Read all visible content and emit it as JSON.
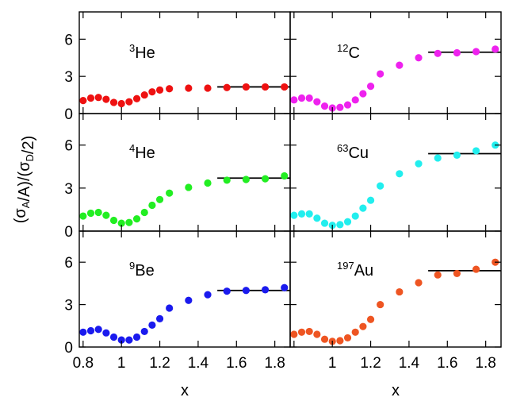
{
  "chart_data": {
    "type": "scatter",
    "layout": "3 rows x 2 columns, shared axes",
    "ylabel": "(σ_A/A)/(σ_D/2)",
    "xlabel": "x",
    "xlim": [
      0.78,
      1.88
    ],
    "ylim": [
      0,
      8.2
    ],
    "x_ticks": [
      0.8,
      1,
      1.2,
      1.4,
      1.6,
      1.8
    ],
    "x_tick_labels_left": [
      "0.8",
      "1",
      "1.2",
      "1.4",
      "1.6",
      "1.8"
    ],
    "x_tick_labels_right": [
      "1",
      "1.2",
      "1.4",
      "1.6",
      "1.8"
    ],
    "y_ticks": [
      0,
      3,
      6
    ],
    "y_tick_labels": [
      "0",
      "3",
      "6"
    ],
    "grid": false,
    "legend": "none",
    "panels": [
      {
        "label_sup": "3",
        "label_main": "He",
        "color": "#ee1111",
        "x": [
          0.8,
          0.84,
          0.88,
          0.92,
          0.96,
          1.0,
          1.04,
          1.08,
          1.12,
          1.16,
          1.2,
          1.25,
          1.35,
          1.45,
          1.55,
          1.65,
          1.75,
          1.85
        ],
        "y": [
          1.05,
          1.25,
          1.3,
          1.15,
          0.9,
          0.8,
          0.95,
          1.2,
          1.5,
          1.75,
          1.9,
          2.0,
          2.05,
          2.05,
          2.1,
          2.15,
          2.15,
          2.15
        ],
        "plateau": {
          "x": [
            1.5,
            1.88
          ],
          "y": 2.15
        }
      },
      {
        "label_sup": "12",
        "label_main": "C",
        "color": "#ee22ee",
        "x": [
          0.8,
          0.84,
          0.88,
          0.92,
          0.96,
          1.0,
          1.04,
          1.08,
          1.12,
          1.16,
          1.2,
          1.25,
          1.35,
          1.45,
          1.55,
          1.65,
          1.75,
          1.85
        ],
        "y": [
          1.1,
          1.25,
          1.25,
          0.95,
          0.6,
          0.45,
          0.5,
          0.7,
          1.1,
          1.6,
          2.2,
          3.2,
          3.9,
          4.5,
          4.85,
          4.9,
          5.0,
          5.2
        ],
        "plateau": {
          "x": [
            1.5,
            1.88
          ],
          "y": 4.95
        }
      },
      {
        "label_sup": "4",
        "label_main": "He",
        "color": "#22ee22",
        "x": [
          0.8,
          0.84,
          0.88,
          0.92,
          0.96,
          1.0,
          1.04,
          1.08,
          1.12,
          1.16,
          1.2,
          1.25,
          1.35,
          1.45,
          1.55,
          1.65,
          1.75,
          1.85
        ],
        "y": [
          1.05,
          1.25,
          1.3,
          1.1,
          0.75,
          0.55,
          0.6,
          0.85,
          1.3,
          1.8,
          2.2,
          2.65,
          3.05,
          3.35,
          3.55,
          3.6,
          3.65,
          3.85
        ],
        "plateau": {
          "x": [
            1.5,
            1.88
          ],
          "y": 3.7
        }
      },
      {
        "label_sup": "63",
        "label_main": "Cu",
        "color": "#22eeee",
        "x": [
          0.8,
          0.84,
          0.88,
          0.92,
          0.96,
          1.0,
          1.04,
          1.08,
          1.12,
          1.16,
          1.2,
          1.25,
          1.35,
          1.45,
          1.55,
          1.65,
          1.75,
          1.85
        ],
        "y": [
          1.1,
          1.2,
          1.2,
          0.9,
          0.55,
          0.4,
          0.45,
          0.65,
          1.05,
          1.6,
          2.15,
          3.15,
          4.0,
          4.7,
          5.1,
          5.3,
          5.6,
          6.0
        ],
        "plateau": {
          "x": [
            1.5,
            1.88
          ],
          "y": 5.4
        }
      },
      {
        "label_sup": "9",
        "label_main": "Be",
        "color": "#1a1aee",
        "x": [
          0.8,
          0.84,
          0.88,
          0.92,
          0.96,
          1.0,
          1.04,
          1.08,
          1.12,
          1.16,
          1.2,
          1.25,
          1.35,
          1.45,
          1.55,
          1.65,
          1.75,
          1.85
        ],
        "y": [
          1.05,
          1.15,
          1.25,
          1.0,
          0.7,
          0.5,
          0.5,
          0.7,
          1.1,
          1.55,
          2.0,
          2.75,
          3.3,
          3.7,
          3.95,
          4.0,
          4.05,
          4.2
        ],
        "plateau": {
          "x": [
            1.5,
            1.88
          ],
          "y": 4.0
        }
      },
      {
        "label_sup": "197",
        "label_main": "Au",
        "color": "#ee5522",
        "x": [
          0.8,
          0.84,
          0.88,
          0.92,
          0.96,
          1.0,
          1.04,
          1.08,
          1.12,
          1.16,
          1.2,
          1.25,
          1.35,
          1.45,
          1.55,
          1.65,
          1.75,
          1.85
        ],
        "y": [
          0.9,
          1.05,
          1.1,
          0.9,
          0.55,
          0.4,
          0.45,
          0.65,
          1.05,
          1.45,
          1.95,
          3.0,
          3.9,
          4.55,
          5.1,
          5.2,
          5.5,
          6.0
        ],
        "plateau": {
          "x": [
            1.5,
            1.88
          ],
          "y": 5.4
        }
      }
    ]
  }
}
